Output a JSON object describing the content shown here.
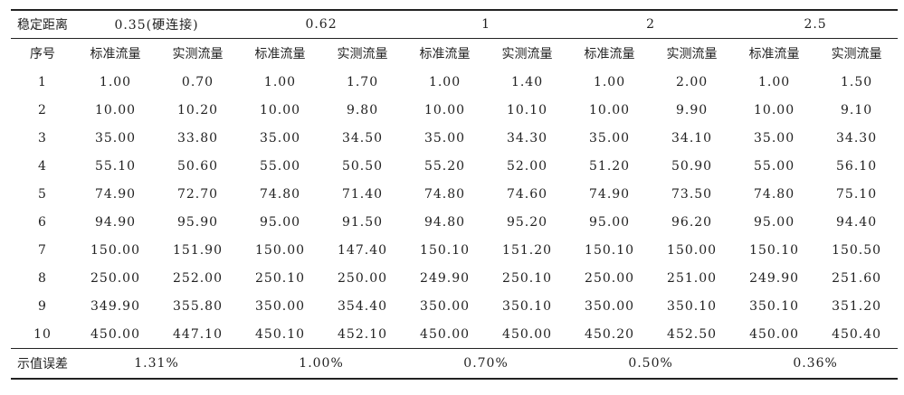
{
  "header": {
    "corner_label": "稳定距离",
    "distances": [
      "0.35(硬连接)",
      "0.62",
      "1",
      "2",
      "2.5"
    ],
    "index_label": "序号",
    "sub_headers": [
      "标准流量",
      "实测流量",
      "标准流量",
      "实测流量",
      "标准流量",
      "实测流量",
      "标准流量",
      "实测流量",
      "标准流量",
      "实测流量"
    ]
  },
  "rows": [
    {
      "id": "1",
      "cells": [
        "1.00",
        "0.70",
        "1.00",
        "1.70",
        "1.00",
        "1.40",
        "1.00",
        "2.00",
        "1.00",
        "1.50"
      ]
    },
    {
      "id": "2",
      "cells": [
        "10.00",
        "10.20",
        "10.00",
        "9.80",
        "10.00",
        "10.10",
        "10.00",
        "9.90",
        "10.00",
        "9.10"
      ]
    },
    {
      "id": "3",
      "cells": [
        "35.00",
        "33.80",
        "35.00",
        "34.50",
        "35.00",
        "34.30",
        "35.00",
        "34.10",
        "35.00",
        "34.30"
      ]
    },
    {
      "id": "4",
      "cells": [
        "55.10",
        "50.60",
        "55.00",
        "50.50",
        "55.20",
        "52.00",
        "51.20",
        "50.90",
        "55.00",
        "56.10"
      ]
    },
    {
      "id": "5",
      "cells": [
        "74.90",
        "72.70",
        "74.80",
        "71.40",
        "74.80",
        "74.60",
        "74.90",
        "73.50",
        "74.80",
        "75.10"
      ]
    },
    {
      "id": "6",
      "cells": [
        "94.90",
        "95.90",
        "95.00",
        "91.50",
        "94.80",
        "95.20",
        "95.00",
        "96.20",
        "95.00",
        "94.40"
      ]
    },
    {
      "id": "7",
      "cells": [
        "150.00",
        "151.90",
        "150.00",
        "147.40",
        "150.10",
        "151.20",
        "150.10",
        "150.00",
        "150.10",
        "150.50"
      ]
    },
    {
      "id": "8",
      "cells": [
        "250.00",
        "252.00",
        "250.10",
        "250.00",
        "249.90",
        "250.10",
        "250.00",
        "251.00",
        "249.90",
        "251.60"
      ]
    },
    {
      "id": "9",
      "cells": [
        "349.90",
        "355.80",
        "350.00",
        "354.40",
        "350.00",
        "350.10",
        "350.00",
        "350.10",
        "350.10",
        "351.20"
      ]
    },
    {
      "id": "10",
      "cells": [
        "450.00",
        "447.10",
        "450.10",
        "452.10",
        "450.00",
        "450.00",
        "450.20",
        "452.50",
        "450.00",
        "450.40"
      ]
    }
  ],
  "error_row": {
    "label": "示值误差",
    "values": [
      "1.31%",
      "1.00%",
      "0.70%",
      "0.50%",
      "0.36%"
    ]
  }
}
